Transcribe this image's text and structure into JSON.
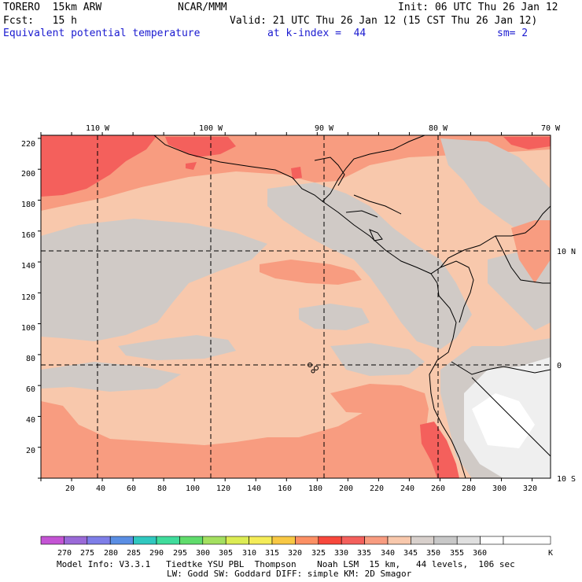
{
  "header": {
    "model": "TORERO  15km ARW",
    "org": "NCAR/MMM",
    "init": "Init: 06 UTC Thu 26 Jan 12",
    "fcst": "Fcst:   15 h",
    "valid": "Valid: 21 UTC Thu 26 Jan 12 (15 CST Thu 26 Jan 12)",
    "field": "Equivalent potential temperature",
    "level": "at k-index =  44",
    "smooth": "sm= 2"
  },
  "map": {
    "lon_labels": [
      "110 W",
      "100 W",
      "90 W",
      "80 W",
      "70 W"
    ],
    "lat_labels": [
      "10 N",
      "0",
      "10 S"
    ],
    "y_ticks": [
      "220",
      "200",
      "180",
      "160",
      "140",
      "120",
      "100",
      "80",
      "60",
      "40",
      "20"
    ],
    "x_ticks": [
      "20",
      "40",
      "60",
      "80",
      "100",
      "120",
      "140",
      "160",
      "180",
      "200",
      "220",
      "240",
      "260",
      "280",
      "300",
      "320"
    ]
  },
  "colorbar": {
    "unit": "K",
    "labels": [
      "270",
      "275",
      "280",
      "285",
      "290",
      "295",
      "300",
      "305",
      "310",
      "315",
      "320",
      "325",
      "330",
      "335",
      "340",
      "345",
      "350",
      "355",
      "360"
    ],
    "colors": [
      "#c454d4",
      "#9a6ad8",
      "#7e7ee8",
      "#5a8ee4",
      "#30c8c0",
      "#40dc9c",
      "#60dc6c",
      "#a4e060",
      "#dcec54",
      "#f4ec58",
      "#f8c844",
      "#fc9064",
      "#f8483c",
      "#f4605c",
      "#f89c80",
      "#f8c8ac",
      "#d8d0cc",
      "#c8c8c8",
      "#e0e0e0",
      "#ffffff"
    ]
  },
  "footer": {
    "line1": "Model Info: V3.3.1   Tiedtke YSU PBL  Thompson    Noah LSM  15 km,   44 levels,  106 sec",
    "line2": "LW: Godd SW: Goddard DIFF: simple KM: 2D Smagor"
  },
  "colors": {
    "peach": "#f8c8ac",
    "gray": "#d0cac6",
    "salmon": "#f89c80",
    "red": "#f4605c",
    "white": "#f4f4f4",
    "label_blue": "#1a1ad0"
  }
}
